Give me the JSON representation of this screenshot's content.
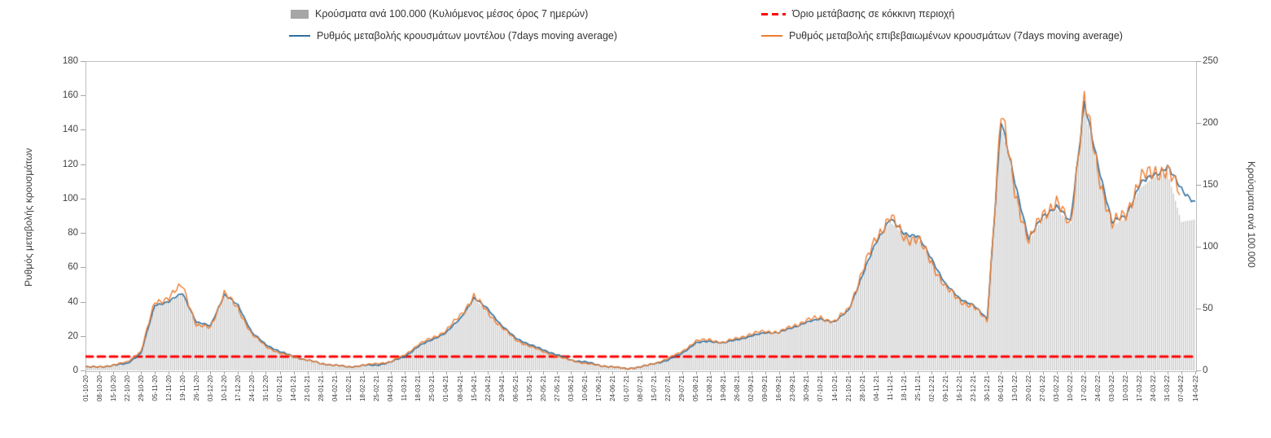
{
  "axes": {
    "left_title": "Ρυθμός μεταβολής κρουσμάτων",
    "right_title": "Κρούσματα ανά 100.000"
  },
  "chart_data": {
    "type": "bar",
    "title": "",
    "legend_position": "top",
    "grid": false,
    "categories": [
      "01-10-20",
      "08-10-20",
      "15-10-20",
      "22-10-20",
      "29-10-20",
      "05-11-20",
      "12-11-20",
      "19-11-20",
      "26-11-20",
      "03-12-20",
      "10-12-20",
      "17-12-20",
      "24-12-20",
      "31-12-20",
      "07-01-21",
      "14-01-21",
      "21-01-21",
      "28-01-21",
      "04-02-21",
      "11-02-21",
      "18-02-21",
      "25-02-21",
      "04-03-21",
      "11-03-21",
      "18-03-21",
      "25-03-21",
      "01-04-21",
      "08-04-21",
      "15-04-21",
      "22-04-21",
      "29-04-21",
      "06-05-21",
      "13-05-21",
      "20-05-21",
      "27-05-21",
      "03-06-21",
      "10-06-21",
      "17-06-21",
      "24-06-21",
      "01-07-21",
      "08-07-21",
      "15-07-21",
      "22-07-21",
      "29-07-21",
      "05-08-21",
      "12-08-21",
      "19-08-21",
      "26-08-21",
      "02-09-21",
      "09-09-21",
      "16-09-21",
      "23-09-21",
      "30-09-21",
      "07-10-21",
      "14-10-21",
      "21-10-21",
      "28-10-21",
      "04-11-21",
      "11-11-21",
      "18-11-21",
      "25-11-21",
      "02-12-21",
      "09-12-21",
      "16-12-21",
      "23-12-21",
      "30-12-21",
      "06-01-22",
      "13-01-22",
      "20-01-22",
      "27-01-22",
      "03-02-22",
      "10-02-22",
      "17-02-22",
      "24-02-22",
      "03-03-22",
      "10-03-22",
      "17-03-22",
      "24-03-22",
      "31-03-22",
      "07-04-22",
      "14-04-22"
    ],
    "left_axis": {
      "title": "Ρυθμός μεταβολής κρουσμάτων",
      "min": 0,
      "max": 180,
      "ticks": [
        0,
        20,
        40,
        60,
        80,
        100,
        120,
        140,
        160,
        180
      ]
    },
    "right_axis": {
      "title": "Κρούσματα ανά 100.000",
      "min": 0,
      "max": 250,
      "ticks": [
        0,
        50,
        100,
        150,
        200,
        250
      ]
    },
    "threshold": {
      "label": "Όριο μετάβασης σε κόκκινη περιοχή",
      "value_left_axis": 8,
      "color": "#ff0000"
    },
    "series": [
      {
        "name": "Κρούσματα ανά 100.000 (Κυλιόμενος μέσος όρος 7 ημερών)",
        "type": "bar",
        "axis": "right",
        "color": "#c3c3c3",
        "legend_color": "#a6a6a6",
        "values": [
          3,
          3,
          4,
          6,
          14,
          52,
          55,
          62,
          38,
          36,
          60,
          52,
          30,
          21,
          15,
          11,
          8,
          6,
          4,
          3,
          4,
          4,
          7,
          11,
          19,
          25,
          30,
          41,
          57,
          49,
          36,
          26,
          21,
          16,
          12,
          8,
          7,
          4,
          3,
          2,
          3,
          6,
          8,
          14,
          22,
          23,
          22,
          25,
          28,
          30,
          30,
          34,
          38,
          41,
          38,
          48,
          75,
          103,
          120,
          110,
          107,
          89,
          68,
          57,
          52,
          41,
          199,
          150,
          104,
          123,
          130,
          119,
          213,
          164,
          117,
          123,
          147,
          156,
          160,
          120,
          122
        ]
      },
      {
        "name": "Ρυθμός μεταβολής κρουσμάτων μοντέλου (7days moving average)",
        "type": "line",
        "axis": "left",
        "color": "#2f6f9e",
        "values": [
          2,
          2,
          3,
          4,
          10,
          38,
          40,
          45,
          28,
          26,
          44,
          38,
          22,
          15,
          11,
          8,
          6,
          4,
          3,
          2,
          3,
          3,
          5,
          8,
          14,
          18,
          22,
          30,
          42,
          36,
          26,
          19,
          15,
          12,
          9,
          6,
          5,
          3,
          2,
          1,
          2,
          4,
          6,
          10,
          16,
          17,
          16,
          18,
          20,
          22,
          22,
          25,
          28,
          30,
          28,
          35,
          55,
          75,
          88,
          80,
          78,
          65,
          50,
          42,
          38,
          30,
          145,
          110,
          76,
          90,
          95,
          87,
          155,
          120,
          86,
          90,
          108,
          114,
          118,
          106,
          97
        ]
      },
      {
        "name": "Ρυθμός μεταβολής επιβεβαιωμένων κρουσμάτων (7days moving average)",
        "type": "line",
        "axis": "left",
        "color": "#ed7d31",
        "values": [
          2,
          2,
          3,
          5,
          11,
          40,
          42,
          50,
          26,
          25,
          45,
          36,
          21,
          14,
          10,
          8,
          6,
          4,
          3,
          2,
          3,
          4,
          5,
          9,
          15,
          19,
          23,
          32,
          43,
          34,
          25,
          18,
          14,
          11,
          8,
          6,
          4,
          3,
          2,
          1,
          2,
          4,
          7,
          11,
          17,
          18,
          16,
          19,
          21,
          23,
          22,
          26,
          29,
          31,
          28,
          36,
          57,
          78,
          89,
          78,
          76,
          63,
          48,
          41,
          37,
          29,
          150,
          105,
          74,
          92,
          97,
          85,
          157,
          116,
          84,
          92,
          110,
          117,
          115,
          103,
          null
        ]
      }
    ]
  }
}
